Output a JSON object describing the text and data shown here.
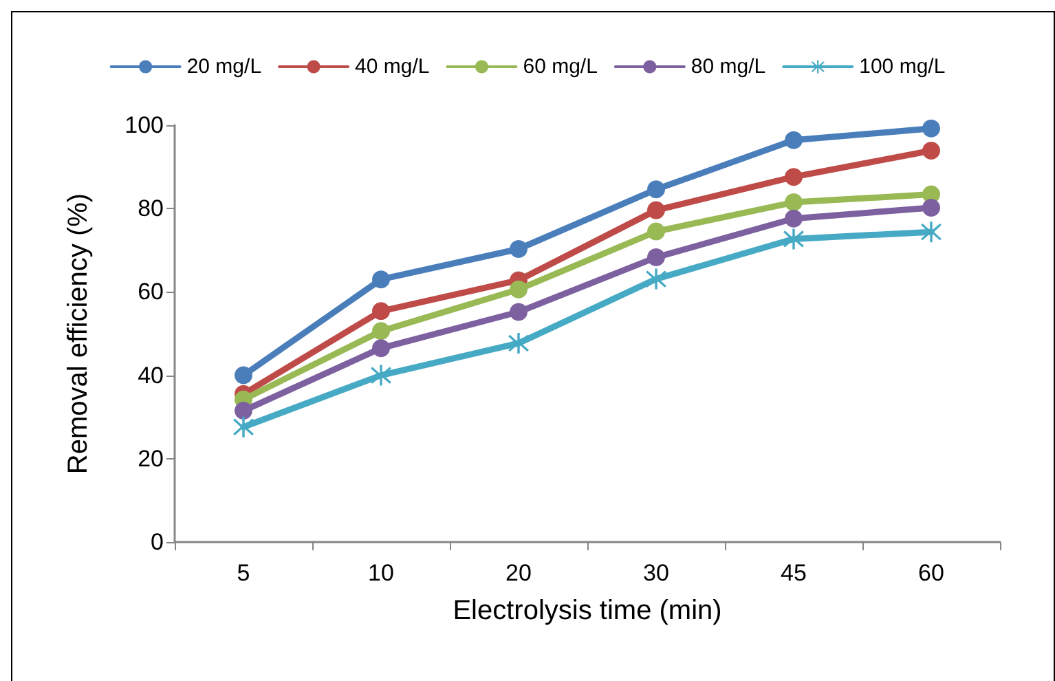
{
  "chart_data": {
    "type": "line",
    "xlabel": "Electrolysis time (min)",
    "ylabel": "Removal efficiency (%)",
    "categories": [
      "5",
      "10",
      "20",
      "30",
      "45",
      "60"
    ],
    "series": [
      {
        "name": "20 mg/L",
        "color": "#4a7ebb",
        "marker": "circle",
        "values": [
          40,
          63,
          70.3,
          84.6,
          96.4,
          99.2
        ]
      },
      {
        "name": "40 mg/L",
        "color": "#be4b48",
        "marker": "circle",
        "values": [
          35.5,
          55.4,
          62.8,
          79.6,
          87.6,
          93.9
        ]
      },
      {
        "name": "60 mg/L",
        "color": "#98b954",
        "marker": "circle",
        "values": [
          34.2,
          50.6,
          60.6,
          74.5,
          81.5,
          83.4
        ]
      },
      {
        "name": "80 mg/L",
        "color": "#7d60a0",
        "marker": "circle",
        "values": [
          31.5,
          46.5,
          55.2,
          68.3,
          77.6,
          80.2
        ]
      },
      {
        "name": "100 mg/L",
        "color": "#46aac5",
        "marker": "cross",
        "values": [
          27.6,
          40,
          47.7,
          63.1,
          72.7,
          74.4
        ]
      }
    ],
    "ylim": [
      0,
      100
    ],
    "yticks": [
      0,
      20,
      40,
      60,
      80,
      100
    ],
    "grid": false,
    "legend": "top",
    "line_style": "solid"
  }
}
